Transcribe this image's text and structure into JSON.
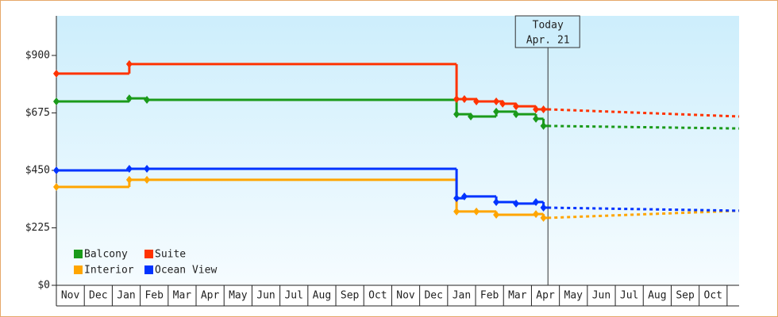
{
  "chart_data": {
    "type": "step-line",
    "categories": [
      "Nov",
      "Dec",
      "Jan",
      "Feb",
      "Mar",
      "Apr",
      "May",
      "Jun",
      "Jul",
      "Aug",
      "Sep",
      "Oct",
      "Nov",
      "Dec",
      "Jan",
      "Feb",
      "Mar",
      "Apr",
      "May",
      "Jun",
      "Jul",
      "Aug",
      "Sep",
      "Oct"
    ],
    "xlim": [
      0,
      24.43
    ],
    "ylim": [
      0,
      1055
    ],
    "yticks": [
      {
        "value": 0,
        "label": "$0"
      },
      {
        "value": 225,
        "label": "$225"
      },
      {
        "value": 450,
        "label": "$450"
      },
      {
        "value": 675,
        "label": "$675"
      },
      {
        "value": 900,
        "label": "$900"
      }
    ],
    "today": {
      "x": 17.59,
      "label": [
        "Today",
        "Apr. 21"
      ]
    },
    "series": [
      {
        "name": "Balcony",
        "color": "#1a9a1a",
        "x": [
          0,
          2.61,
          3.24,
          14.32,
          14.83,
          15.74,
          16.45,
          17.16,
          17.43
        ],
        "values": [
          720,
          732,
          726,
          670,
          661,
          680,
          670,
          652,
          624
        ],
        "forecast": {
          "x": [
            17.59,
            24.43
          ],
          "values": [
            624,
            614
          ]
        }
      },
      {
        "name": "Suite",
        "color": "#ff3300",
        "x": [
          0,
          2.61,
          14.32,
          14.6,
          15.03,
          15.74,
          15.97,
          16.45,
          17.16,
          17.43
        ],
        "values": [
          829,
          866,
          729,
          729,
          720,
          720,
          711,
          701,
          689,
          689
        ],
        "forecast": {
          "x": [
            17.59,
            24.43
          ],
          "values": [
            689,
            661
          ]
        }
      },
      {
        "name": "Interior",
        "color": "#ffa500",
        "x": [
          0,
          2.61,
          3.24,
          14.32,
          15.03,
          15.74,
          17.16,
          17.43
        ],
        "values": [
          385,
          413,
          413,
          289,
          289,
          276,
          279,
          264
        ],
        "forecast": {
          "x": [
            17.59,
            24.43
          ],
          "values": [
            264,
            292
          ]
        }
      },
      {
        "name": "Ocean View",
        "color": "#0033ff",
        "x": [
          0,
          2.61,
          3.24,
          14.32,
          14.6,
          15.74,
          16.45,
          17.16,
          17.43
        ],
        "values": [
          450,
          456,
          456,
          341,
          348,
          326,
          320,
          326,
          304
        ],
        "forecast": {
          "x": [
            17.59,
            24.43
          ],
          "values": [
            304,
            292
          ]
        }
      }
    ]
  }
}
